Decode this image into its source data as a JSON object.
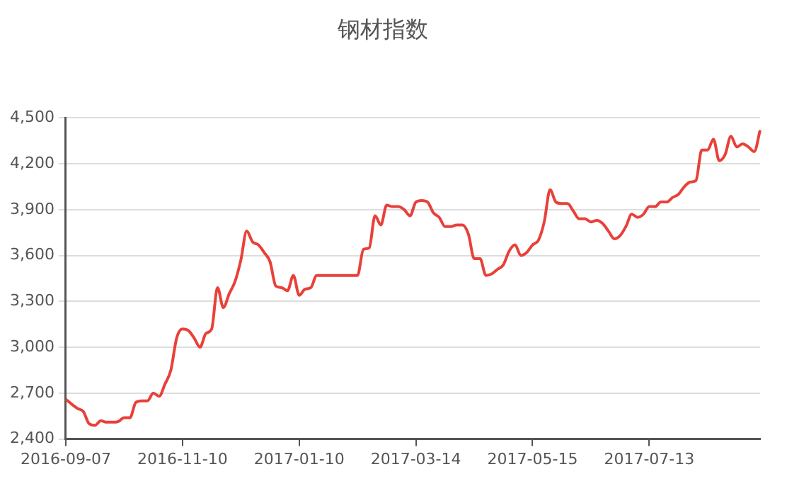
{
  "chart_data": {
    "type": "line",
    "title": "钢材指数",
    "categories": [
      "2016-09-07",
      null,
      null,
      null,
      null,
      null,
      null,
      null,
      null,
      null,
      null,
      null,
      null,
      null,
      null,
      null,
      null,
      null,
      null,
      null,
      "2016-11-10",
      null,
      null,
      null,
      null,
      null,
      null,
      null,
      null,
      null,
      null,
      null,
      null,
      null,
      null,
      null,
      null,
      null,
      null,
      null,
      "2017-01-10",
      null,
      null,
      null,
      null,
      null,
      null,
      null,
      null,
      null,
      null,
      null,
      null,
      null,
      null,
      null,
      null,
      null,
      null,
      null,
      "2017-03-14",
      null,
      null,
      null,
      null,
      null,
      null,
      null,
      null,
      null,
      null,
      null,
      null,
      null,
      null,
      null,
      null,
      null,
      null,
      null,
      "2017-05-15",
      null,
      null,
      null,
      null,
      null,
      null,
      null,
      null,
      null,
      null,
      null,
      null,
      null,
      null,
      null,
      null,
      null,
      null,
      null,
      "2017-07-13",
      null,
      null,
      null,
      null,
      null,
      null,
      null,
      null,
      null,
      null,
      null,
      null,
      null,
      null,
      null,
      null,
      null,
      null,
      null
    ],
    "series": [
      {
        "color": "#e8413a",
        "values": [
          2660,
          2628,
          2600,
          2580,
          2500,
          2490,
          2520,
          2510,
          2510,
          2515,
          2540,
          2540,
          2640,
          2650,
          2650,
          2700,
          2680,
          2760,
          2850,
          3060,
          3120,
          3110,
          3060,
          3000,
          3090,
          3120,
          3390,
          3260,
          3350,
          3430,
          3570,
          3760,
          3690,
          3670,
          3620,
          3560,
          3400,
          3390,
          3370,
          3470,
          3340,
          3380,
          3390,
          3470,
          3470,
          3470,
          3470,
          3470,
          3470,
          3470,
          3470,
          3640,
          3650,
          3860,
          3800,
          3930,
          3920,
          3920,
          3900,
          3860,
          3950,
          3960,
          3950,
          3880,
          3850,
          3790,
          3790,
          3800,
          3800,
          3740,
          3580,
          3580,
          3470,
          3480,
          3510,
          3540,
          3630,
          3670,
          3600,
          3620,
          3670,
          3700,
          3820,
          4030,
          3950,
          3940,
          3940,
          3890,
          3840,
          3840,
          3820,
          3830,
          3810,
          3760,
          3710,
          3730,
          3790,
          3870,
          3850,
          3870,
          3920,
          3920,
          3950,
          3950,
          3980,
          4000,
          4050,
          4080,
          4090,
          4290,
          4290,
          4360,
          4220,
          4260,
          4380,
          4310,
          4330,
          4310,
          4280,
          4420
        ]
      }
    ],
    "ylim": [
      2400,
      4500
    ],
    "yticks": [
      {
        "value": 2400,
        "label": "2,400"
      },
      {
        "value": 2700,
        "label": "2,700"
      },
      {
        "value": 3000,
        "label": "3,000"
      },
      {
        "value": 3300,
        "label": "3,300"
      },
      {
        "value": 3600,
        "label": "3,600"
      },
      {
        "value": 3900,
        "label": "3,900"
      },
      {
        "value": 4200,
        "label": "4,200"
      },
      {
        "value": 4500,
        "label": "4,500"
      }
    ],
    "grid": "y",
    "legend": false,
    "marker": "none",
    "line_style": "solid"
  }
}
